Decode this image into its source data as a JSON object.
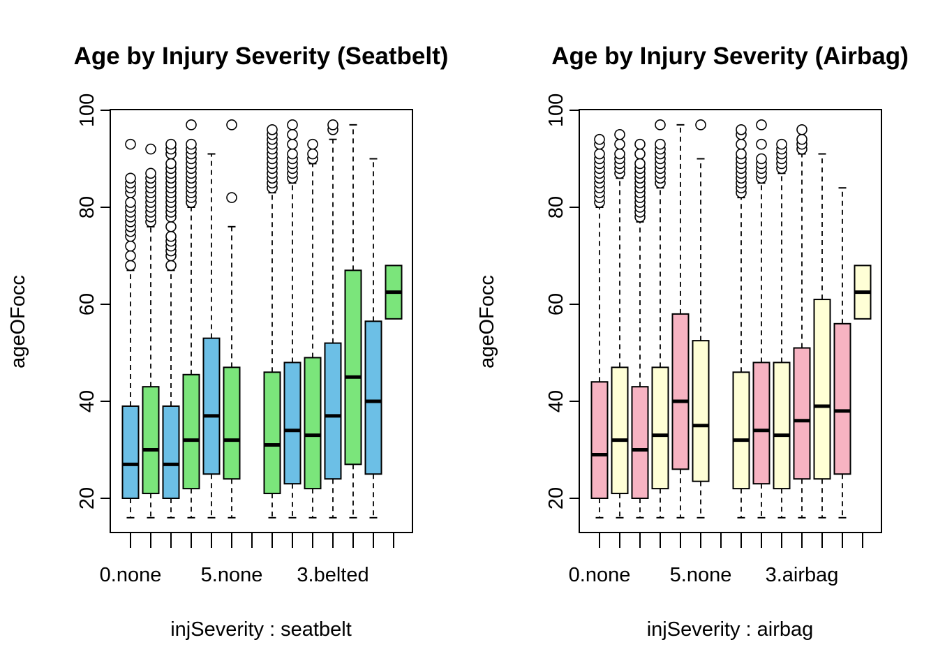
{
  "colors": {
    "blue": "#6cbfe6",
    "green": "#7be57b",
    "pink": "#f7b3c2",
    "cream": "#ffffd6"
  },
  "chart_data": [
    {
      "type": "box",
      "title": "Age by Injury Severity (Seatbelt)",
      "xlabel": "injSeverity : seatbelt",
      "ylabel": "ageOFocc",
      "ylim": [
        12,
        100
      ],
      "yticks": [
        20,
        40,
        60,
        80,
        100
      ],
      "x_tick_labels": [
        {
          "position": 1,
          "label": "0.none"
        },
        {
          "position": 6,
          "label": "5.none"
        },
        {
          "position": 11,
          "label": "3.belted"
        }
      ],
      "fill_colors": [
        "blue",
        "green"
      ],
      "n_positions": 14,
      "boxes": [
        {
          "pos": 1,
          "fill": "blue",
          "whisker_low": 16,
          "q1": 20,
          "median": 27,
          "q3": 39,
          "whisker_high": 67,
          "outliers": [
            68,
            70,
            72,
            74,
            75,
            76,
            77,
            78,
            79,
            80,
            81,
            83,
            84,
            85,
            86,
            93
          ]
        },
        {
          "pos": 2,
          "fill": "green",
          "whisker_low": 16,
          "q1": 21,
          "median": 30,
          "q3": 43,
          "whisker_high": 76,
          "outliers": [
            77,
            78,
            79,
            80,
            81,
            82,
            83,
            84,
            85,
            86,
            87,
            92
          ]
        },
        {
          "pos": 3,
          "fill": "blue",
          "whisker_low": 16,
          "q1": 20,
          "median": 27,
          "q3": 39,
          "whisker_high": 67,
          "outliers": [
            68,
            70,
            71,
            72,
            73,
            74,
            76,
            78,
            79,
            80,
            81,
            82,
            83,
            84,
            85,
            86,
            87,
            88,
            89,
            91,
            92,
            93
          ]
        },
        {
          "pos": 4,
          "fill": "green",
          "whisker_low": 16,
          "q1": 22,
          "median": 32,
          "q3": 45.5,
          "whisker_high": 80,
          "outliers": [
            81,
            82,
            83,
            84,
            85,
            86,
            87,
            88,
            89,
            90,
            91,
            92,
            93,
            97
          ]
        },
        {
          "pos": 5,
          "fill": "blue",
          "whisker_low": 16,
          "q1": 25,
          "median": 37,
          "q3": 53,
          "whisker_high": 91,
          "outliers": []
        },
        {
          "pos": 6,
          "fill": "green",
          "whisker_low": 16,
          "q1": 24,
          "median": 32,
          "q3": 47,
          "whisker_high": 76,
          "outliers": [
            82,
            97
          ]
        },
        {
          "pos": 8,
          "fill": "green",
          "whisker_low": 16,
          "q1": 21,
          "median": 31,
          "q3": 46,
          "whisker_high": 83,
          "outliers": [
            84,
            85,
            86,
            87,
            88,
            89,
            90,
            91,
            92,
            93,
            94,
            95,
            96
          ]
        },
        {
          "pos": 9,
          "fill": "blue",
          "whisker_low": 16,
          "q1": 23,
          "median": 34,
          "q3": 48,
          "whisker_high": 85,
          "outliers": [
            86,
            87,
            88,
            89,
            90,
            91,
            93,
            95,
            97
          ]
        },
        {
          "pos": 10,
          "fill": "green",
          "whisker_low": 16,
          "q1": 22,
          "median": 33,
          "q3": 49,
          "whisker_high": 89,
          "outliers": [
            90,
            91,
            93
          ]
        },
        {
          "pos": 11,
          "fill": "blue",
          "whisker_low": 16,
          "q1": 24,
          "median": 37,
          "q3": 52,
          "whisker_high": 94,
          "outliers": [
            96,
            97
          ]
        },
        {
          "pos": 12,
          "fill": "green",
          "whisker_low": 16,
          "q1": 27,
          "median": 45,
          "q3": 67,
          "whisker_high": 97,
          "outliers": []
        },
        {
          "pos": 13,
          "fill": "blue",
          "whisker_low": 16,
          "q1": 25,
          "median": 40,
          "q3": 56.5,
          "whisker_high": 90,
          "outliers": []
        },
        {
          "pos": 14,
          "fill": "green",
          "whisker_low": 57,
          "q1": 57,
          "median": 62.5,
          "q3": 68,
          "whisker_high": 68,
          "outliers": []
        }
      ]
    },
    {
      "type": "box",
      "title": "Age by Injury Severity (Airbag)",
      "xlabel": "injSeverity : airbag",
      "ylabel": "ageOFocc",
      "ylim": [
        12,
        100
      ],
      "yticks": [
        20,
        40,
        60,
        80,
        100
      ],
      "x_tick_labels": [
        {
          "position": 1,
          "label": "0.none"
        },
        {
          "position": 6,
          "label": "5.none"
        },
        {
          "position": 11,
          "label": "3.airbag"
        }
      ],
      "fill_colors": [
        "pink",
        "cream"
      ],
      "n_positions": 14,
      "boxes": [
        {
          "pos": 1,
          "fill": "pink",
          "whisker_low": 16,
          "q1": 20,
          "median": 29,
          "q3": 44,
          "whisker_high": 80,
          "outliers": [
            81,
            82,
            83,
            84,
            85,
            86,
            87,
            88,
            89,
            90,
            91,
            93,
            94
          ]
        },
        {
          "pos": 2,
          "fill": "cream",
          "whisker_low": 16,
          "q1": 21,
          "median": 32,
          "q3": 47,
          "whisker_high": 86,
          "outliers": [
            87,
            88,
            89,
            90,
            91,
            93,
            95
          ]
        },
        {
          "pos": 3,
          "fill": "pink",
          "whisker_low": 16,
          "q1": 20,
          "median": 30,
          "q3": 43,
          "whisker_high": 77,
          "outliers": [
            78,
            79,
            80,
            81,
            82,
            83,
            84,
            85,
            86,
            87,
            88,
            89,
            91,
            93
          ]
        },
        {
          "pos": 4,
          "fill": "cream",
          "whisker_low": 16,
          "q1": 22,
          "median": 33,
          "q3": 47,
          "whisker_high": 84,
          "outliers": [
            85,
            86,
            87,
            88,
            89,
            90,
            91,
            92,
            93,
            97
          ]
        },
        {
          "pos": 5,
          "fill": "pink",
          "whisker_low": 16,
          "q1": 26,
          "median": 40,
          "q3": 58,
          "whisker_high": 97,
          "outliers": []
        },
        {
          "pos": 6,
          "fill": "cream",
          "whisker_low": 16,
          "q1": 23.5,
          "median": 35,
          "q3": 52.5,
          "whisker_high": 90,
          "outliers": [
            97
          ]
        },
        {
          "pos": 8,
          "fill": "cream",
          "whisker_low": 16,
          "q1": 22,
          "median": 32,
          "q3": 46,
          "whisker_high": 82,
          "outliers": [
            83,
            84,
            85,
            86,
            87,
            88,
            89,
            90,
            91,
            93,
            95,
            96
          ]
        },
        {
          "pos": 9,
          "fill": "pink",
          "whisker_low": 16,
          "q1": 23,
          "median": 34,
          "q3": 48,
          "whisker_high": 85,
          "outliers": [
            86,
            87,
            88,
            89,
            90,
            93,
            97
          ]
        },
        {
          "pos": 10,
          "fill": "cream",
          "whisker_low": 16,
          "q1": 22,
          "median": 33,
          "q3": 48,
          "whisker_high": 87,
          "outliers": [
            88,
            89,
            90,
            91,
            92,
            93
          ]
        },
        {
          "pos": 11,
          "fill": "pink",
          "whisker_low": 16,
          "q1": 24,
          "median": 36,
          "q3": 51,
          "whisker_high": 91,
          "outliers": [
            92,
            93,
            94,
            96
          ]
        },
        {
          "pos": 12,
          "fill": "cream",
          "whisker_low": 16,
          "q1": 24,
          "median": 39,
          "q3": 61,
          "whisker_high": 91,
          "outliers": []
        },
        {
          "pos": 13,
          "fill": "pink",
          "whisker_low": 16,
          "q1": 25,
          "median": 38,
          "q3": 56,
          "whisker_high": 84,
          "outliers": []
        },
        {
          "pos": 14,
          "fill": "cream",
          "whisker_low": 57,
          "q1": 57,
          "median": 62.5,
          "q3": 68,
          "whisker_high": 68,
          "outliers": []
        }
      ]
    }
  ]
}
